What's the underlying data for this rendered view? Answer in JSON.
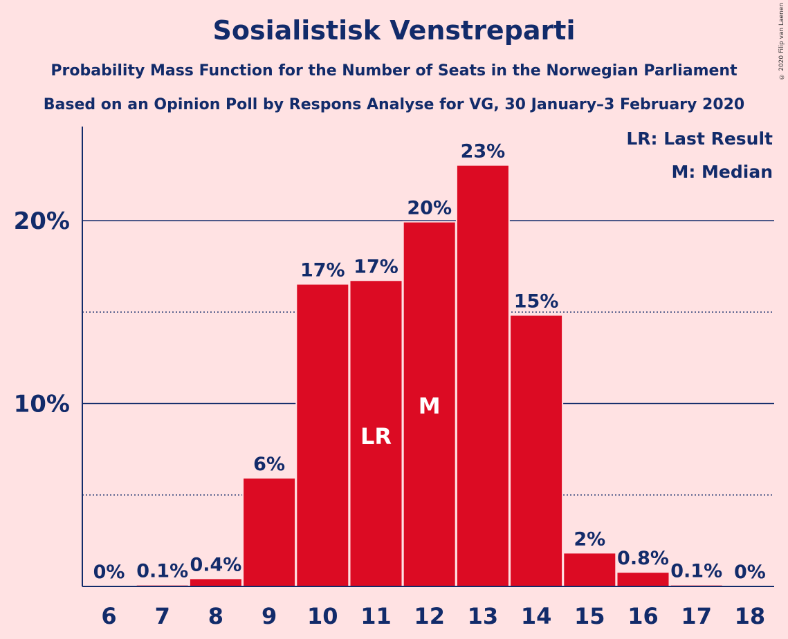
{
  "title": "Sosialistisk Venstreparti",
  "subtitle_1": "Probability Mass Function for the Number of Seats in the Norwegian Parliament",
  "subtitle_2": "Based on an Opinion Poll by Respons Analyse for VG, 30 January–3 February 2020",
  "copyright": "© 2020 Filip van Laenen",
  "legend": {
    "last_result": "LR: Last Result",
    "median": "M: Median"
  },
  "colors": {
    "background": "#ffe2e3",
    "bar": "#dc0b23",
    "text": "#122b6a"
  },
  "chart_data": {
    "type": "bar",
    "title": "Sosialistisk Venstreparti",
    "categories": [
      "6",
      "7",
      "8",
      "9",
      "10",
      "11",
      "12",
      "13",
      "14",
      "15",
      "16",
      "17",
      "18"
    ],
    "values": [
      0,
      0.05,
      0.4,
      5.9,
      16.5,
      16.7,
      19.9,
      23.0,
      14.8,
      1.8,
      0.75,
      0.05,
      0
    ],
    "data_labels": [
      "0%",
      "0.1%",
      "0.4%",
      "6%",
      "17%",
      "17%",
      "20%",
      "23%",
      "15%",
      "2%",
      "0.8%",
      "0.1%",
      "0%"
    ],
    "ylim": [
      0,
      25
    ],
    "y_ticks": [
      10,
      20
    ],
    "y_tick_labels": [
      "10%",
      "20%"
    ],
    "y_minor_gridlines": [
      5,
      15
    ],
    "markers": [
      {
        "category": "11",
        "label": "LR"
      },
      {
        "category": "12",
        "label": "M"
      }
    ],
    "legend_position": "top-right",
    "grid": true
  }
}
